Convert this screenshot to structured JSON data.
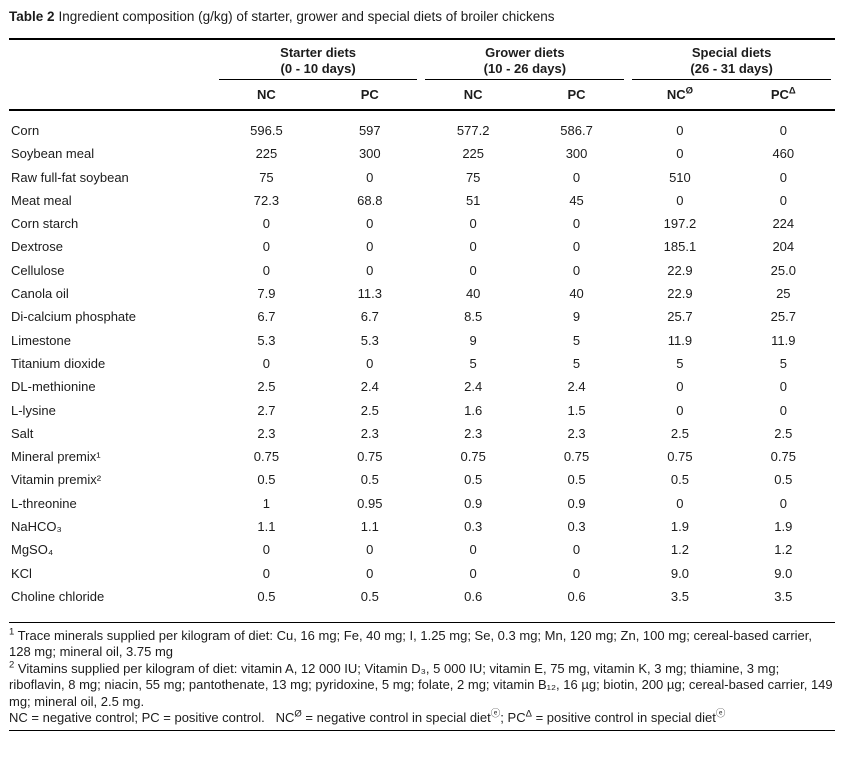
{
  "caption": {
    "label": "Table 2",
    "text": "Ingredient composition (g/kg) of starter, grower and special diets of broiler chickens"
  },
  "table": {
    "groups": [
      {
        "name": "Starter diets",
        "period": "(0 - 10 days)",
        "columns": [
          {
            "label": "NC",
            "sup": ""
          },
          {
            "label": "PC",
            "sup": ""
          }
        ]
      },
      {
        "name": "Grower diets",
        "period": "(10 - 26 days)",
        "columns": [
          {
            "label": "NC",
            "sup": ""
          },
          {
            "label": "PC",
            "sup": ""
          }
        ]
      },
      {
        "name": "Special diets",
        "period": "(26 - 31 days)",
        "columns": [
          {
            "label": "NC",
            "sup": "Ø"
          },
          {
            "label": "PC",
            "sup": "Δ"
          }
        ]
      }
    ],
    "rows": [
      {
        "label": "Corn",
        "values": [
          "596.5",
          "597",
          "577.2",
          "586.7",
          "0",
          "0"
        ]
      },
      {
        "label": "Soybean meal",
        "values": [
          "225",
          "300",
          "225",
          "300",
          "0",
          "460"
        ]
      },
      {
        "label": "Raw full-fat soybean",
        "values": [
          "75",
          "0",
          "75",
          "0",
          "510",
          "0"
        ]
      },
      {
        "label": "Meat meal",
        "values": [
          "72.3",
          "68.8",
          "51",
          "45",
          "0",
          "0"
        ]
      },
      {
        "label": "Corn starch",
        "values": [
          "0",
          "0",
          "0",
          "0",
          "197.2",
          "224"
        ]
      },
      {
        "label": "Dextrose",
        "values": [
          "0",
          "0",
          "0",
          "0",
          "185.1",
          "204"
        ]
      },
      {
        "label": "Cellulose",
        "values": [
          "0",
          "0",
          "0",
          "0",
          "22.9",
          "25.0"
        ]
      },
      {
        "label": "Canola oil",
        "values": [
          "7.9",
          "11.3",
          "40",
          "40",
          "22.9",
          "25"
        ]
      },
      {
        "label": "Di-calcium phosphate",
        "values": [
          "6.7",
          "6.7",
          "8.5",
          "9",
          "25.7",
          "25.7"
        ]
      },
      {
        "label": "Limestone",
        "values": [
          "5.3",
          "5.3",
          "9",
          "5",
          "11.9",
          "11.9"
        ]
      },
      {
        "label": "Titanium dioxide",
        "values": [
          "0",
          "0",
          "5",
          "5",
          "5",
          "5"
        ]
      },
      {
        "label": "DL-methionine",
        "values": [
          "2.5",
          "2.4",
          "2.4",
          "2.4",
          "0",
          "0"
        ]
      },
      {
        "label": "L-lysine",
        "values": [
          "2.7",
          "2.5",
          "1.6",
          "1.5",
          "0",
          "0"
        ]
      },
      {
        "label": "Salt",
        "values": [
          "2.3",
          "2.3",
          "2.3",
          "2.3",
          "2.5",
          "2.5"
        ]
      },
      {
        "label": "Mineral premix¹",
        "values": [
          "0.75",
          "0.75",
          "0.75",
          "0.75",
          "0.75",
          "0.75"
        ]
      },
      {
        "label": "Vitamin premix²",
        "values": [
          "0.5",
          "0.5",
          "0.5",
          "0.5",
          "0.5",
          "0.5"
        ]
      },
      {
        "label": "L-threonine",
        "values": [
          "1",
          "0.95",
          "0.9",
          "0.9",
          "0",
          "0"
        ]
      },
      {
        "label": "NaHCO₃",
        "values": [
          "1.1",
          "1.1",
          "0.3",
          "0.3",
          "1.9",
          "1.9"
        ]
      },
      {
        "label": "MgSO₄",
        "values": [
          "0",
          "0",
          "0",
          "0",
          "1.2",
          "1.2"
        ]
      },
      {
        "label": "KCl",
        "values": [
          "0",
          "0",
          "0",
          "0",
          "9.0",
          "9.0"
        ]
      },
      {
        "label": "Choline chloride",
        "values": [
          "0.5",
          "0.5",
          "0.6",
          "0.6",
          "3.5",
          "3.5"
        ]
      }
    ]
  },
  "footnotes": [
    {
      "segments": [
        {
          "t": "1",
          "sup": true
        },
        {
          "t": " Trace minerals supplied per kilogram of diet: Cu, 16 mg; Fe, 40 mg; I, 1.25 mg; Se, 0.3 mg; Mn, 120 mg; Zn, 100 mg; cereal-based carrier, 128 mg; mineral oil, 3.75 mg",
          "sup": false
        }
      ]
    },
    {
      "segments": [
        {
          "t": "2",
          "sup": true
        },
        {
          "t": " Vitamins supplied per kilogram of diet: vitamin A, 12 000 IU; Vitamin D₃, 5 000 IU; vitamin E, 75 mg, vitamin K, 3 mg; thiamine, 3 mg; riboflavin, 8 mg; niacin, 55 mg; pantothenate, 13 mg; pyridoxine, 5 mg; folate, 2 mg; vitamin B₁₂, 16 µg; biotin, 200 µg; cereal-based carrier, 149 mg; mineral oil, 2.5 mg.",
          "sup": false
        }
      ]
    },
    {
      "segments": [
        {
          "t": "NC = negative control; PC = positive control.   NC",
          "sup": false
        },
        {
          "t": "Ø",
          "sup": true
        },
        {
          "t": " = negative control in special diet",
          "sup": false
        },
        {
          "t": "ⓔ",
          "sup": true
        },
        {
          "t": "; PC",
          "sup": false
        },
        {
          "t": "Δ",
          "sup": true
        },
        {
          "t": " = positive control in special diet",
          "sup": false
        },
        {
          "t": "ⓔ",
          "sup": true
        }
      ]
    }
  ]
}
